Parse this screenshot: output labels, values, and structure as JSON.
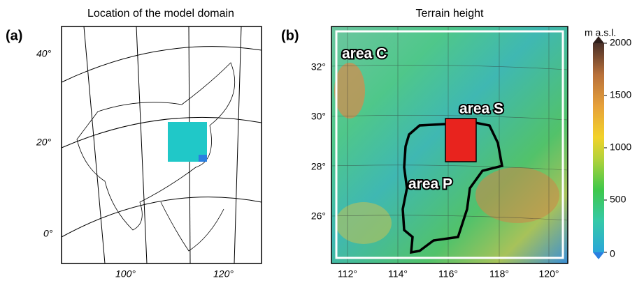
{
  "panel_a": {
    "label": "(a)",
    "title": "Location of the model domain",
    "lat_labels": [
      "40°",
      "20°",
      "0°"
    ],
    "lon_labels": [
      "100°",
      "120°"
    ]
  },
  "panel_b": {
    "label": "(b)",
    "title": "Terrain height",
    "lat_labels": [
      "32°",
      "30°",
      "28°",
      "26°"
    ],
    "lon_labels": [
      "112°",
      "114°",
      "116°",
      "118°",
      "120°"
    ],
    "areas": [
      "area C",
      "area S",
      "area P"
    ],
    "colorbar": {
      "title": "m a.s.l.",
      "ticks": [
        0,
        500,
        1000,
        1500,
        2000
      ]
    }
  }
}
